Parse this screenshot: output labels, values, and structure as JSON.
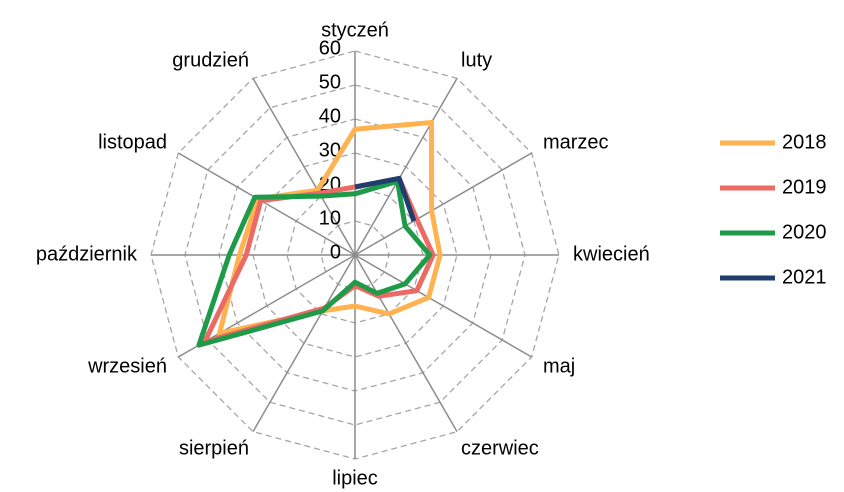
{
  "chart_data": {
    "type": "radar",
    "categories": [
      "styczeń",
      "luty",
      "marzec",
      "kwiecień",
      "maj",
      "czerwiec",
      "lipiec",
      "sierpień",
      "wrzesień",
      "październik",
      "listopad",
      "grudzień"
    ],
    "series": [
      {
        "name": "2018",
        "color": "#ffb24f",
        "values": [
          37,
          45,
          26,
          25,
          25,
          20,
          15,
          19,
          46,
          34,
          33,
          22
        ]
      },
      {
        "name": "2019",
        "color": "#ec6a63",
        "values": [
          20,
          26,
          21,
          23,
          21,
          14,
          9,
          18,
          51,
          32,
          32,
          21
        ]
      },
      {
        "name": "2020",
        "color": "#1e9a48",
        "values": [
          18,
          25,
          17,
          22,
          17,
          13,
          8,
          19,
          53,
          37,
          34,
          20
        ]
      },
      {
        "name": "2021",
        "color": "#1f3e6e",
        "values": [
          20,
          26,
          20,
          null,
          null,
          null,
          null,
          null,
          null,
          null,
          null,
          null
        ]
      }
    ],
    "ylim": [
      0,
      60
    ],
    "yticks": [
      0,
      10,
      20,
      30,
      40,
      50,
      60
    ],
    "grid": true,
    "legend": "right"
  }
}
